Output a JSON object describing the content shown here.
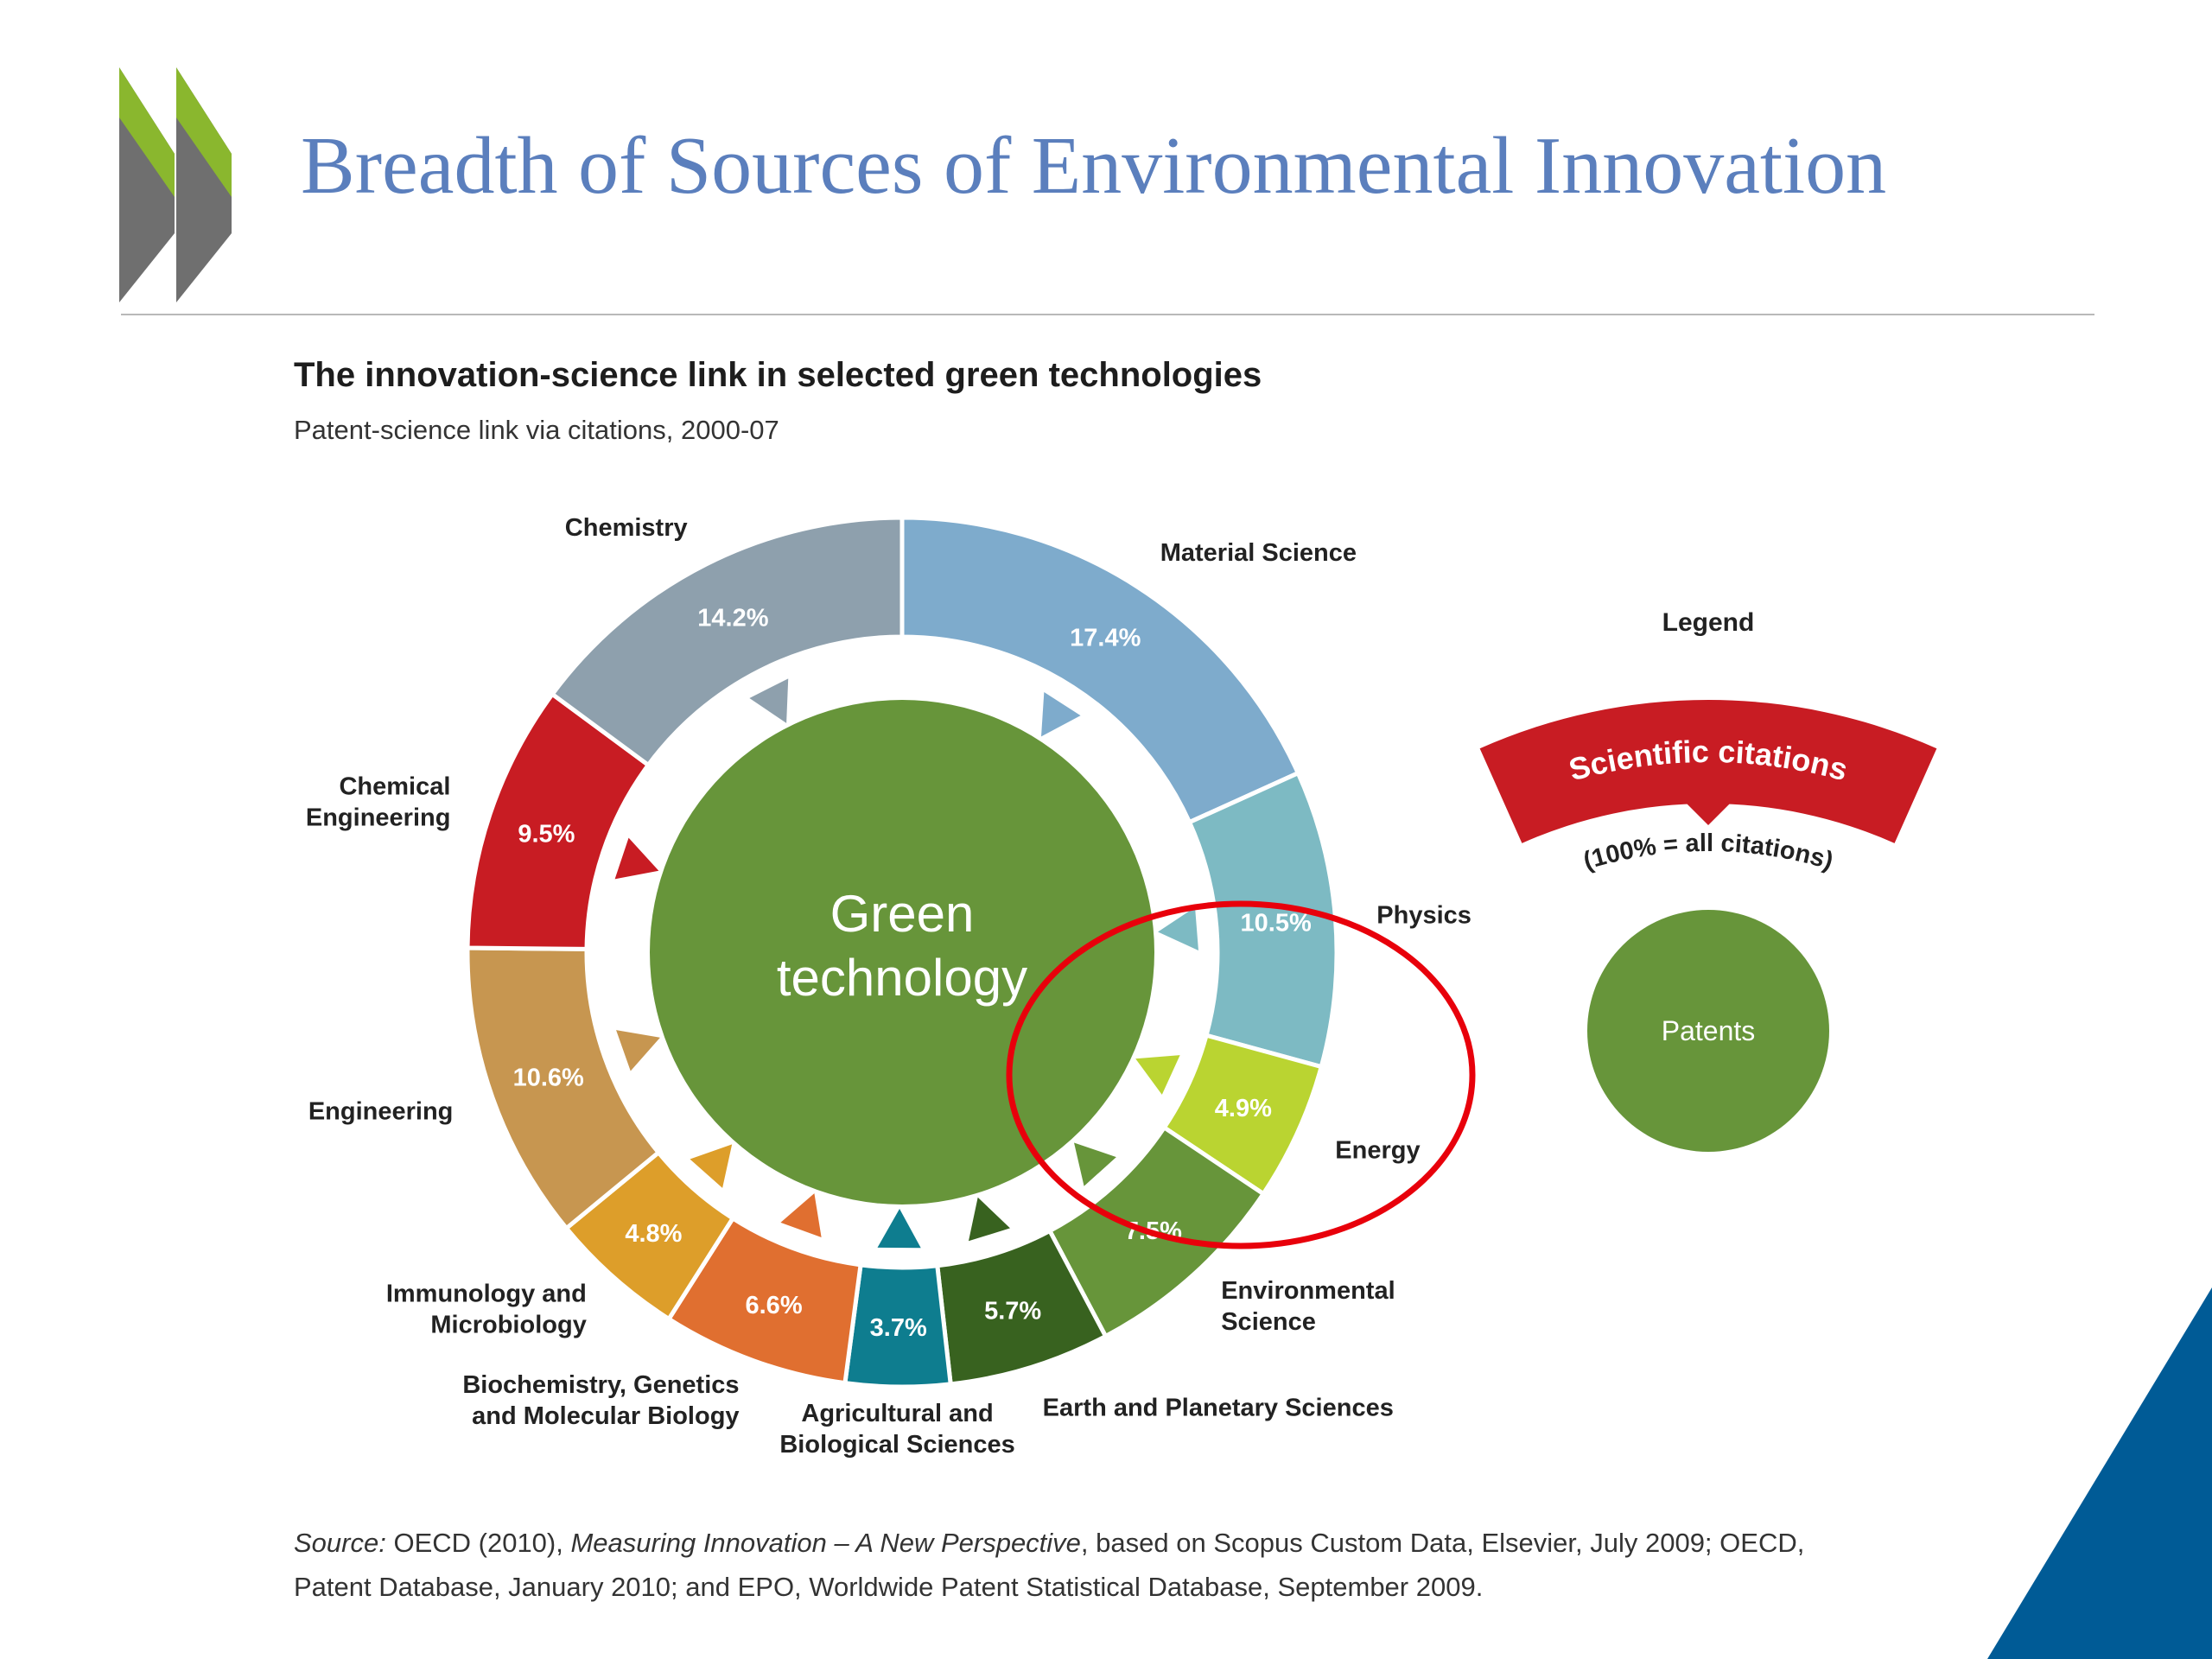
{
  "slide": {
    "title": "Breadth of Sources of Environmental Innovation",
    "logo_colors": {
      "green": "#8ab72e",
      "grey": "#6f6f6f"
    },
    "accent_blue": "#005b96"
  },
  "chart_data": {
    "type": "donut",
    "title": "The innovation-science link in selected green technologies",
    "subtitle": "Patent-science link via citations, 2000-07",
    "center_label": [
      "Green",
      "technology"
    ],
    "center_color": "#67953a",
    "segments": [
      {
        "name": [
          "Material Science"
        ],
        "value": 17.4,
        "label": "17.4%",
        "color": "#7eabcc"
      },
      {
        "name": [
          "Physics"
        ],
        "value": 10.5,
        "label": "10.5%",
        "color": "#7dbac3"
      },
      {
        "name": [
          "Energy"
        ],
        "value": 4.9,
        "label": "4.9%",
        "color": "#bad431"
      },
      {
        "name": [
          "Environmental",
          "Science"
        ],
        "value": 7.5,
        "label": "7.5%",
        "color": "#67953a"
      },
      {
        "name": [
          "Earth and Planetary Sciences"
        ],
        "value": 5.7,
        "label": "5.7%",
        "color": "#38621f"
      },
      {
        "name": [
          "Agricultural and",
          "Biological Sciences"
        ],
        "value": 3.7,
        "label": "3.7%",
        "color": "#0e7d8f"
      },
      {
        "name": [
          "Biochemistry, Genetics",
          "and Molecular Biology"
        ],
        "value": 6.6,
        "label": "6.6%",
        "color": "#e06f30"
      },
      {
        "name": [
          "Immunology and",
          "Microbiology"
        ],
        "value": 4.8,
        "label": "4.8%",
        "color": "#dd9e2a"
      },
      {
        "name": [
          "Engineering"
        ],
        "value": 10.6,
        "label": "10.6%",
        "color": "#c79650"
      },
      {
        "name": [
          "Chemical",
          "Engineering"
        ],
        "value": 9.5,
        "label": "9.5%",
        "color": "#c81c23"
      },
      {
        "name": [
          "Chemistry"
        ],
        "value": 14.2,
        "label": "14.2%",
        "color": "#8ea0ad"
      }
    ],
    "legend": {
      "title": "Legend",
      "band_label": "Scientific citations",
      "band_color": "#c81c23",
      "note": "(100% = all citations)",
      "circle_label": "Patents",
      "circle_color": "#67953a"
    },
    "highlight": {
      "color": "#e8000b",
      "target": [
        "Physics",
        "Energy",
        "Environmental Science"
      ]
    }
  },
  "source": {
    "prefix": "Source:",
    "part1": " OECD (2010), ",
    "publication": "Measuring Innovation – A New Perspective",
    "part2": ", based on Scopus Custom Data, Elsevier, July 2009; OECD, Patent Database, January 2010; and EPO, Worldwide Patent Statistical Database, September 2009."
  }
}
